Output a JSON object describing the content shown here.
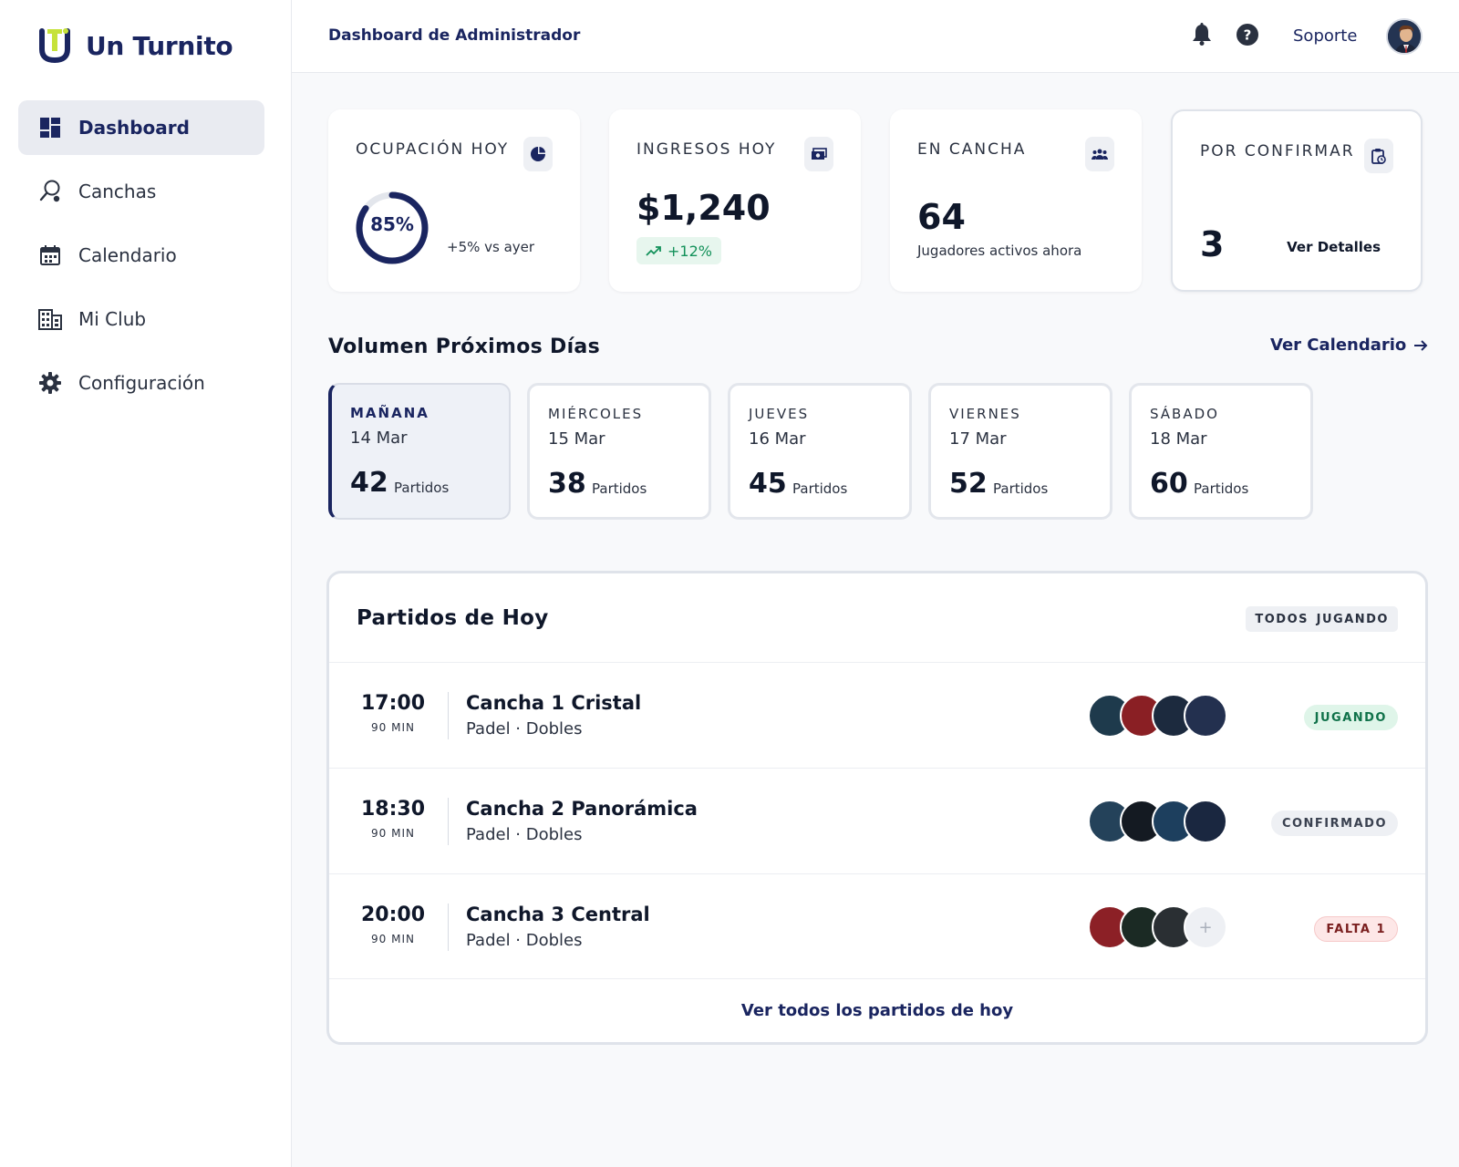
{
  "brand": {
    "name": "Un Turnito",
    "accent": "#c6e23a",
    "primary": "#1a2560"
  },
  "sidebar": {
    "items": [
      {
        "label": "Dashboard",
        "icon": "dashboard-icon",
        "active": true
      },
      {
        "label": "Canchas",
        "icon": "racket-icon"
      },
      {
        "label": "Calendario",
        "icon": "calendar-icon"
      },
      {
        "label": "Mi Club",
        "icon": "building-icon"
      },
      {
        "label": "Configuración",
        "icon": "gear-icon"
      }
    ]
  },
  "header": {
    "title": "Dashboard de Administrador",
    "support": "Soporte",
    "icons": [
      "bell-icon",
      "help-icon",
      "avatar"
    ]
  },
  "stats": {
    "occupancy": {
      "label": "OCUPACIÓN HOY",
      "value": "85%",
      "fraction": 0.85,
      "delta": "+5% vs ayer",
      "icon": "pie-chart-icon"
    },
    "revenue": {
      "label": "INGRESOS HOY",
      "value": "$1,240",
      "trend": "+12%",
      "icon": "money-icon"
    },
    "on_court": {
      "label": "EN CANCHA",
      "value": "64",
      "sub": "Jugadores activos ahora",
      "icon": "group-icon"
    },
    "pending": {
      "label": "POR CONFIRMAR",
      "value": "3",
      "link": "Ver Detalles",
      "icon": "clipboard-clock-icon"
    }
  },
  "upcoming": {
    "title": "Volumen Próximos Días",
    "link": "Ver Calendario",
    "days": [
      {
        "name": "MAÑANA",
        "date": "14 Mar",
        "count": "42",
        "unit": "Partidos",
        "active": true
      },
      {
        "name": "MIÉRCOLES",
        "date": "15 Mar",
        "count": "38",
        "unit": "Partidos"
      },
      {
        "name": "JUEVES",
        "date": "16 Mar",
        "count": "45",
        "unit": "Partidos"
      },
      {
        "name": "VIERNES",
        "date": "17 Mar",
        "count": "52",
        "unit": "Partidos"
      },
      {
        "name": "SÁBADO",
        "date": "18 Mar",
        "count": "60",
        "unit": "Partidos"
      }
    ]
  },
  "matches": {
    "title": "Partidos de Hoy",
    "filters": [
      "TODOS",
      "JUGANDO"
    ],
    "rows": [
      {
        "time": "17:00",
        "duration": "90 MIN",
        "court": "Cancha 1 Cristal",
        "kind": "Padel · Dobles",
        "status": "JUGANDO"
      },
      {
        "time": "18:30",
        "duration": "90 MIN",
        "court": "Cancha 2 Panorámica",
        "kind": "Padel · Dobles",
        "status": "CONFIRMADO"
      },
      {
        "time": "20:00",
        "duration": "90 MIN",
        "court": "Cancha 3 Central",
        "kind": "Padel · Dobles",
        "status": "FALTA 1",
        "empty_slot": "+"
      }
    ],
    "footer": "Ver todos los partidos de hoy"
  }
}
